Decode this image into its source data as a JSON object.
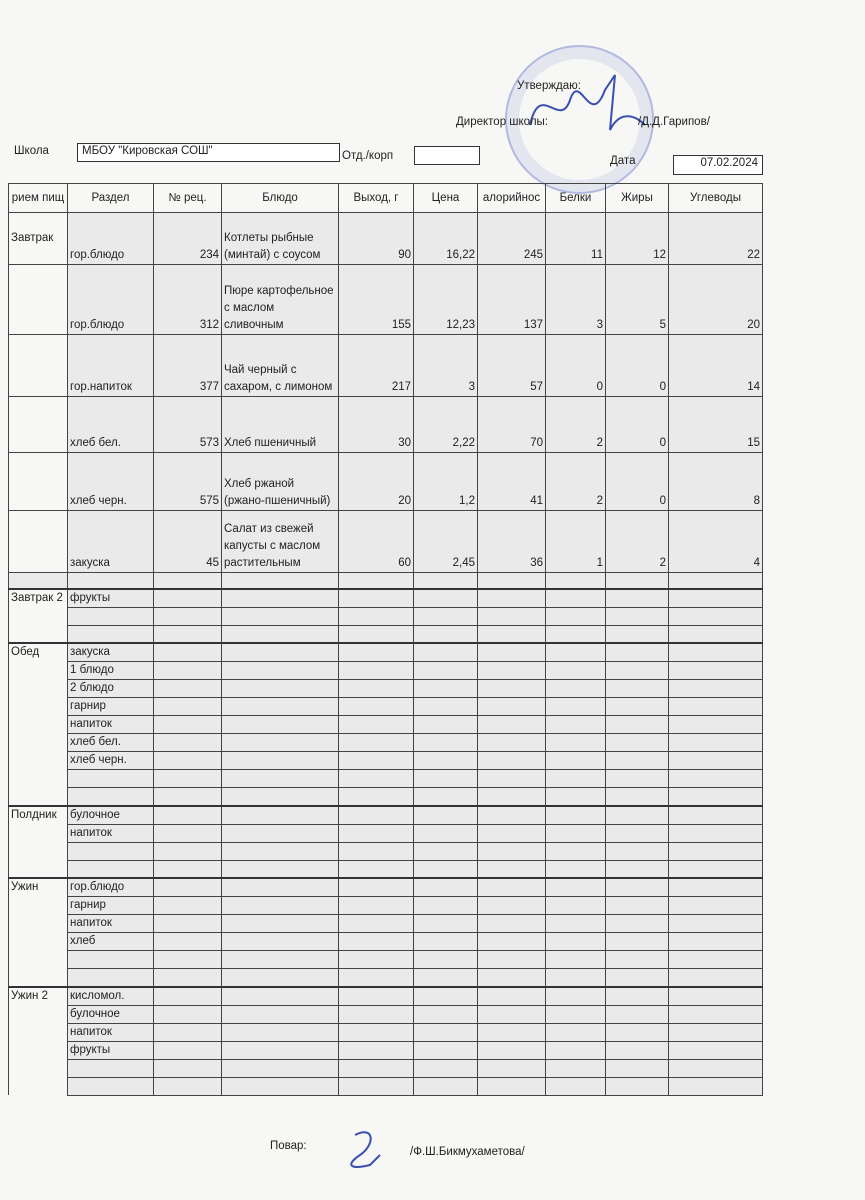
{
  "approval": {
    "label": "Утверждаю:",
    "director_label": "Директор школы:",
    "director_name": "/Д.Д.Гарипов/"
  },
  "school": {
    "label": "Школа",
    "value": "МБОУ \"Кировская СОШ\"",
    "dept_label": "Отд./корп",
    "dept_value": "",
    "date_label": "Дата",
    "date_value": "07.02.2024"
  },
  "columns": [
    "Прием пищи",
    "Раздел",
    "№ рец.",
    "Блюдо",
    "Выход, г",
    "Цена",
    "Калорийность",
    "Белки",
    "Жиры",
    "Углеводы"
  ],
  "columns_visible": [
    "риeм пищ",
    "Раздел",
    "№ рец.",
    "Блюдо",
    "Выход, г",
    "Цена",
    "алорийнос",
    "Белки",
    "Жиры",
    "Углеводы"
  ],
  "breakfast": {
    "meal": "Завтрак",
    "rows": [
      {
        "section": "гор.блюдо",
        "recipe": "234",
        "dish": "Котлеты рыбные (минтай) с соусом",
        "yield": "90",
        "price": "16,22",
        "kcal": "245",
        "protein": "11",
        "fat": "12",
        "carbs": "22"
      },
      {
        "section": "гор.блюдо",
        "recipe": "312",
        "dish": "Пюре картофельное с маслом сливочным",
        "yield": "155",
        "price": "12,23",
        "kcal": "137",
        "protein": "3",
        "fat": "5",
        "carbs": "20"
      },
      {
        "section": "гор.напиток",
        "recipe": "377",
        "dish": "Чай черный с сахаром, с лимоном",
        "yield": "217",
        "price": "3",
        "kcal": "57",
        "protein": "0",
        "fat": "0",
        "carbs": "14"
      },
      {
        "section": "хлеб бел.",
        "recipe": "573",
        "dish": "Хлеб пшеничный",
        "yield": "30",
        "price": "2,22",
        "kcal": "70",
        "protein": "2",
        "fat": "0",
        "carbs": "15"
      },
      {
        "section": "хлеб черн.",
        "recipe": "575",
        "dish": "Хлеб ржаной (ржано-пшеничный)",
        "yield": "20",
        "price": "1,2",
        "kcal": "41",
        "protein": "2",
        "fat": "0",
        "carbs": "8"
      },
      {
        "section": "закуска",
        "recipe": "45",
        "dish": "Салат из свежей капусты с маслом растительным",
        "yield": "60",
        "price": "2,45",
        "kcal": "36",
        "protein": "1",
        "fat": "2",
        "carbs": "4"
      }
    ]
  },
  "other_meals": [
    {
      "meal": "Завтрак 2",
      "sections": [
        "фрукты",
        "",
        ""
      ]
    },
    {
      "meal": "Обед",
      "sections": [
        "закуска",
        "1 блюдо",
        "2 блюдо",
        "гарнир",
        "напиток",
        "хлеб бел.",
        "хлеб черн.",
        "",
        ""
      ]
    },
    {
      "meal": "Полдник",
      "sections": [
        "булочное",
        "напиток",
        "",
        ""
      ]
    },
    {
      "meal": "Ужин",
      "sections": [
        "гор.блюдо",
        "гарнир",
        "напиток",
        "хлеб",
        "",
        ""
      ]
    },
    {
      "meal": "Ужин 2",
      "sections": [
        "кисломол.",
        "булочное",
        "напиток",
        "фрукты",
        "",
        ""
      ]
    }
  ],
  "footer": {
    "cook_label": "Повар:",
    "cook_name": "/Ф.Ш.Бикмухаметова/"
  },
  "colors": {
    "stamp": "#5a6ec8",
    "signature": "#3a4fb0"
  }
}
